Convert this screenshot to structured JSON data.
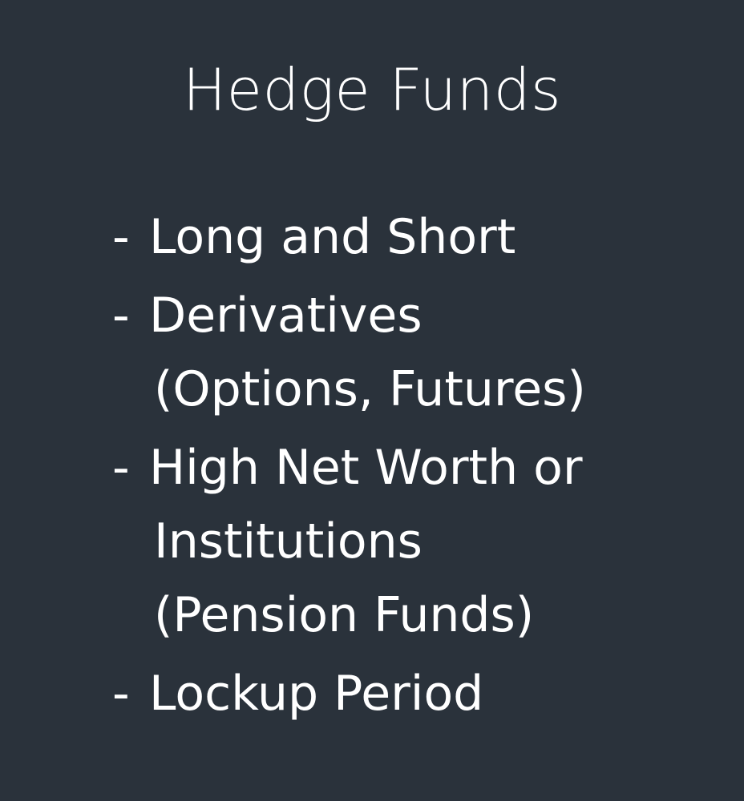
{
  "slide": {
    "title": "Hedge Funds",
    "bullet_marker": "-",
    "bullets": [
      {
        "lines": [
          "Long and Short"
        ]
      },
      {
        "lines": [
          "Derivatives",
          "(Options, Futures)"
        ]
      },
      {
        "lines": [
          "High Net Worth or",
          "Institutions",
          "(Pension Funds)"
        ]
      },
      {
        "lines": [
          "Lockup Period"
        ]
      }
    ]
  },
  "colors": {
    "background": "#2a323b",
    "text": "#ffffff"
  }
}
